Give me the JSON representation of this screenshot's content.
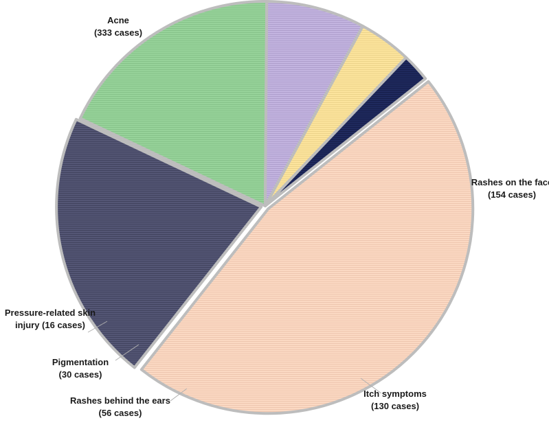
{
  "chart_data": {
    "type": "pie",
    "title": "",
    "legend": "none",
    "unit": "cases",
    "slices": [
      {
        "name": "Acne",
        "value": 333,
        "label_lines": [
          "Acne",
          "(333 cases)"
        ],
        "color": "#FBD9C3",
        "texture": "#EBC2AA"
      },
      {
        "name": "Rashes on the face",
        "value": 154,
        "label_lines": [
          "Rashes on the face",
          "(154 cases)"
        ],
        "color": "#545675",
        "texture": "#3C3E58"
      },
      {
        "name": "Itch symptoms",
        "value": 130,
        "label_lines": [
          "Itch symptoms",
          "(130 cases)"
        ],
        "color": "#97D39A",
        "texture": "#82BE85"
      },
      {
        "name": "Rashes behind the ears",
        "value": 56,
        "label_lines": [
          "Rashes behind the ears",
          "(56 cases)"
        ],
        "color": "#C3B4E0",
        "texture": "#A999C8"
      },
      {
        "name": "Pigmentation",
        "value": 30,
        "label_lines": [
          "Pigmentation",
          "(30 cases)"
        ],
        "color": "#FCE49D",
        "texture": "#E8CF86"
      },
      {
        "name": "Pressure-related skin injury",
        "value": 16,
        "label_lines": [
          "Pressure-related skin",
          "injury (16 cases)"
        ],
        "color": "#1F2A5E",
        "texture": "#141B45"
      }
    ]
  }
}
